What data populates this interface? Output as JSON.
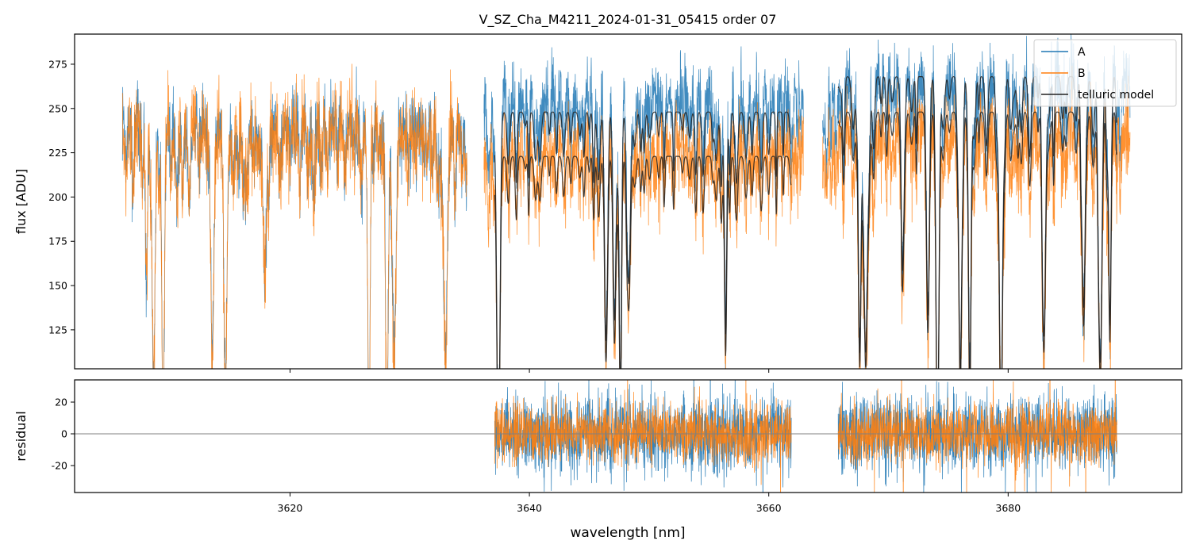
{
  "chart_data": [
    {
      "type": "line",
      "title": "V_SZ_Cha_M4211_2024-01-31_05415  order 07",
      "xlabel": "",
      "ylabel": "flux [ADU]",
      "xlim": [
        3602,
        3694.5
      ],
      "ylim": [
        103,
        292
      ],
      "yticks": [
        125,
        150,
        175,
        200,
        225,
        250,
        275
      ],
      "xticks": [
        3620,
        3640,
        3660,
        3680
      ],
      "legend": {
        "placement": "top-right",
        "entries": [
          "A",
          "B",
          "telluric model"
        ]
      },
      "colors": {
        "A": "#1f77b4",
        "B": "#ff7f0e",
        "telluric model": "#222222"
      },
      "series": [
        {
          "name": "A",
          "segments": [
            [
              3606.0,
              3634.8
            ],
            [
              3636.2,
              3662.9
            ],
            [
              3664.5,
              3690.2
            ]
          ],
          "baseline": 240,
          "offset_after_3636": 15,
          "noise": 16
        },
        {
          "name": "B",
          "segments": [
            [
              3606.0,
              3634.8
            ],
            [
              3636.2,
              3662.9
            ],
            [
              3664.5,
              3690.2
            ]
          ],
          "baseline": 238,
          "offset_after_3636": -12,
          "noise": 18
        },
        {
          "name": "telluric model",
          "segments": [
            [
              3637.1,
              3661.9
            ],
            [
              3665.8,
              3689.1
            ]
          ],
          "continuum_A": [
            248,
            268
          ],
          "continuum_B": [
            223,
            248
          ]
        }
      ]
    },
    {
      "type": "line",
      "title": "",
      "xlabel": "wavelength [nm]",
      "ylabel": "residual",
      "xlim": [
        3602,
        3694.5
      ],
      "ylim": [
        -37,
        34
      ],
      "yticks": [
        -20,
        0,
        20
      ],
      "xticks": [
        3620,
        3640,
        3660,
        3680
      ],
      "series": [
        {
          "name": "A",
          "segments": [
            [
              3637.1,
              3661.9
            ],
            [
              3665.8,
              3689.1
            ]
          ],
          "noise": 17
        },
        {
          "name": "B",
          "segments": [
            [
              3637.1,
              3661.9
            ],
            [
              3665.8,
              3689.1
            ]
          ],
          "noise": 13
        }
      ],
      "zero_line": 0
    }
  ]
}
